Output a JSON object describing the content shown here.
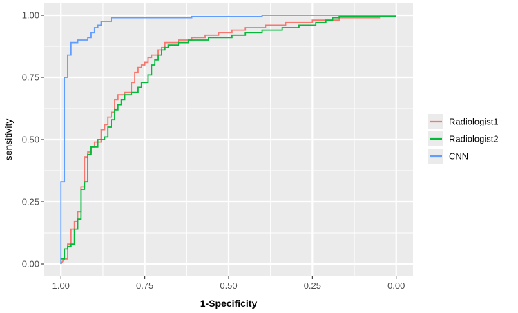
{
  "chart_data": {
    "type": "line",
    "xlabel": "1-Specificity",
    "ylabel": "sensitivity",
    "xlim": [
      1.0,
      0.0
    ],
    "ylim": [
      0.0,
      1.0
    ],
    "x_reversed": true,
    "grid": true,
    "legend_position": "right",
    "x_ticks": [
      1.0,
      0.75,
      0.5,
      0.25,
      0.0
    ],
    "x_tick_labels": [
      "1.00",
      "0.75",
      "0.50",
      "0.25",
      "0.00"
    ],
    "y_ticks": [
      0.0,
      0.25,
      0.5,
      0.75,
      1.0
    ],
    "y_tick_labels": [
      "0.00",
      "0.25",
      "0.50",
      "0.75",
      "1.00"
    ],
    "panel_background": "#ebebeb",
    "grid_color": "#ffffff",
    "series": [
      {
        "name": "Radiologist1",
        "color": "#f8766d",
        "points": [
          [
            1.0,
            0.0
          ],
          [
            0.99,
            0.02
          ],
          [
            0.98,
            0.02
          ],
          [
            0.98,
            0.08
          ],
          [
            0.97,
            0.08
          ],
          [
            0.97,
            0.14
          ],
          [
            0.96,
            0.14
          ],
          [
            0.96,
            0.17
          ],
          [
            0.95,
            0.17
          ],
          [
            0.95,
            0.21
          ],
          [
            0.94,
            0.21
          ],
          [
            0.94,
            0.31
          ],
          [
            0.93,
            0.31
          ],
          [
            0.93,
            0.43
          ],
          [
            0.92,
            0.43
          ],
          [
            0.92,
            0.45
          ],
          [
            0.91,
            0.45
          ],
          [
            0.91,
            0.47
          ],
          [
            0.9,
            0.47
          ],
          [
            0.9,
            0.49
          ],
          [
            0.89,
            0.49
          ],
          [
            0.88,
            0.49
          ],
          [
            0.88,
            0.54
          ],
          [
            0.87,
            0.54
          ],
          [
            0.87,
            0.56
          ],
          [
            0.86,
            0.56
          ],
          [
            0.86,
            0.59
          ],
          [
            0.85,
            0.59
          ],
          [
            0.85,
            0.61
          ],
          [
            0.84,
            0.61
          ],
          [
            0.84,
            0.66
          ],
          [
            0.83,
            0.66
          ],
          [
            0.83,
            0.68
          ],
          [
            0.82,
            0.68
          ],
          [
            0.81,
            0.68
          ],
          [
            0.81,
            0.69
          ],
          [
            0.79,
            0.69
          ],
          [
            0.79,
            0.73
          ],
          [
            0.78,
            0.73
          ],
          [
            0.78,
            0.77
          ],
          [
            0.77,
            0.77
          ],
          [
            0.77,
            0.79
          ],
          [
            0.76,
            0.79
          ],
          [
            0.76,
            0.8
          ],
          [
            0.75,
            0.8
          ],
          [
            0.75,
            0.81
          ],
          [
            0.74,
            0.81
          ],
          [
            0.74,
            0.83
          ],
          [
            0.73,
            0.83
          ],
          [
            0.73,
            0.84
          ],
          [
            0.72,
            0.84
          ],
          [
            0.71,
            0.84
          ],
          [
            0.71,
            0.86
          ],
          [
            0.7,
            0.86
          ],
          [
            0.7,
            0.87
          ],
          [
            0.69,
            0.87
          ],
          [
            0.69,
            0.89
          ],
          [
            0.65,
            0.89
          ],
          [
            0.65,
            0.9
          ],
          [
            0.61,
            0.9
          ],
          [
            0.61,
            0.91
          ],
          [
            0.57,
            0.91
          ],
          [
            0.57,
            0.92
          ],
          [
            0.53,
            0.92
          ],
          [
            0.53,
            0.93
          ],
          [
            0.49,
            0.93
          ],
          [
            0.49,
            0.94
          ],
          [
            0.45,
            0.94
          ],
          [
            0.45,
            0.95
          ],
          [
            0.39,
            0.95
          ],
          [
            0.39,
            0.96
          ],
          [
            0.33,
            0.96
          ],
          [
            0.33,
            0.97
          ],
          [
            0.25,
            0.97
          ],
          [
            0.25,
            0.98
          ],
          [
            0.17,
            0.98
          ],
          [
            0.17,
            0.99
          ],
          [
            0.05,
            0.99
          ],
          [
            0.05,
            0.995
          ],
          [
            0.0,
            0.995
          ]
        ]
      },
      {
        "name": "Radiologist2",
        "color": "#00ba38",
        "points": [
          [
            1.0,
            0.0
          ],
          [
            1.0,
            0.02
          ],
          [
            0.99,
            0.02
          ],
          [
            0.99,
            0.06
          ],
          [
            0.98,
            0.06
          ],
          [
            0.98,
            0.07
          ],
          [
            0.97,
            0.07
          ],
          [
            0.97,
            0.08
          ],
          [
            0.96,
            0.08
          ],
          [
            0.96,
            0.14
          ],
          [
            0.95,
            0.14
          ],
          [
            0.95,
            0.18
          ],
          [
            0.94,
            0.18
          ],
          [
            0.94,
            0.3
          ],
          [
            0.93,
            0.3
          ],
          [
            0.93,
            0.33
          ],
          [
            0.92,
            0.33
          ],
          [
            0.92,
            0.44
          ],
          [
            0.91,
            0.44
          ],
          [
            0.91,
            0.47
          ],
          [
            0.9,
            0.47
          ],
          [
            0.89,
            0.47
          ],
          [
            0.89,
            0.5
          ],
          [
            0.87,
            0.5
          ],
          [
            0.87,
            0.51
          ],
          [
            0.86,
            0.51
          ],
          [
            0.86,
            0.55
          ],
          [
            0.85,
            0.55
          ],
          [
            0.85,
            0.58
          ],
          [
            0.84,
            0.58
          ],
          [
            0.84,
            0.62
          ],
          [
            0.83,
            0.62
          ],
          [
            0.83,
            0.64
          ],
          [
            0.82,
            0.64
          ],
          [
            0.82,
            0.66
          ],
          [
            0.81,
            0.66
          ],
          [
            0.81,
            0.68
          ],
          [
            0.79,
            0.68
          ],
          [
            0.79,
            0.69
          ],
          [
            0.78,
            0.69
          ],
          [
            0.77,
            0.69
          ],
          [
            0.77,
            0.71
          ],
          [
            0.76,
            0.71
          ],
          [
            0.76,
            0.73
          ],
          [
            0.74,
            0.73
          ],
          [
            0.74,
            0.76
          ],
          [
            0.73,
            0.76
          ],
          [
            0.73,
            0.8
          ],
          [
            0.72,
            0.8
          ],
          [
            0.72,
            0.82
          ],
          [
            0.71,
            0.82
          ],
          [
            0.71,
            0.84
          ],
          [
            0.7,
            0.84
          ],
          [
            0.7,
            0.86
          ],
          [
            0.69,
            0.86
          ],
          [
            0.69,
            0.87
          ],
          [
            0.68,
            0.87
          ],
          [
            0.68,
            0.88
          ],
          [
            0.65,
            0.88
          ],
          [
            0.65,
            0.89
          ],
          [
            0.62,
            0.89
          ],
          [
            0.62,
            0.9
          ],
          [
            0.56,
            0.9
          ],
          [
            0.56,
            0.91
          ],
          [
            0.49,
            0.91
          ],
          [
            0.49,
            0.92
          ],
          [
            0.45,
            0.92
          ],
          [
            0.45,
            0.93
          ],
          [
            0.4,
            0.93
          ],
          [
            0.4,
            0.94
          ],
          [
            0.34,
            0.94
          ],
          [
            0.34,
            0.95
          ],
          [
            0.29,
            0.95
          ],
          [
            0.29,
            0.96
          ],
          [
            0.24,
            0.96
          ],
          [
            0.24,
            0.97
          ],
          [
            0.21,
            0.97
          ],
          [
            0.21,
            0.98
          ],
          [
            0.19,
            0.98
          ],
          [
            0.19,
            0.99
          ],
          [
            0.17,
            0.99
          ],
          [
            0.17,
            0.995
          ],
          [
            0.0,
            0.995
          ]
        ]
      },
      {
        "name": "CNN",
        "color": "#619cff",
        "points": [
          [
            1.0,
            0.0
          ],
          [
            1.0,
            0.33
          ],
          [
            0.99,
            0.33
          ],
          [
            0.99,
            0.75
          ],
          [
            0.98,
            0.75
          ],
          [
            0.98,
            0.84
          ],
          [
            0.97,
            0.84
          ],
          [
            0.97,
            0.89
          ],
          [
            0.95,
            0.89
          ],
          [
            0.95,
            0.9
          ],
          [
            0.92,
            0.9
          ],
          [
            0.92,
            0.91
          ],
          [
            0.91,
            0.91
          ],
          [
            0.91,
            0.93
          ],
          [
            0.9,
            0.93
          ],
          [
            0.9,
            0.95
          ],
          [
            0.89,
            0.95
          ],
          [
            0.89,
            0.96
          ],
          [
            0.88,
            0.96
          ],
          [
            0.88,
            0.975
          ],
          [
            0.85,
            0.975
          ],
          [
            0.85,
            0.99
          ],
          [
            0.61,
            0.99
          ],
          [
            0.61,
            0.995
          ],
          [
            0.4,
            0.995
          ],
          [
            0.4,
            1.0
          ],
          [
            0.0,
            1.0
          ]
        ]
      }
    ]
  }
}
